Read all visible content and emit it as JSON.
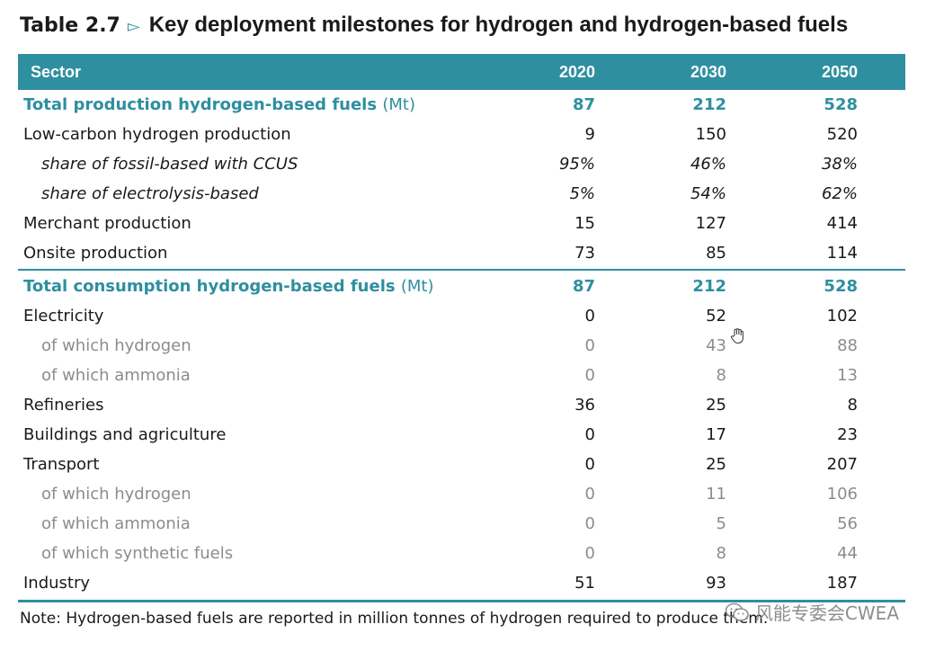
{
  "title": {
    "number": "Table 2.7",
    "arrow": "▻",
    "text": "Key deployment milestones for hydrogen and hydrogen-based fuels"
  },
  "header": {
    "sector": "Sector",
    "y2020": "2020",
    "y2030": "2030",
    "y2050": "2050"
  },
  "production": {
    "total": {
      "label": "Total production hydrogen-based fuels",
      "unit": "(Mt)",
      "v2020": "87",
      "v2030": "212",
      "v2050": "528"
    },
    "low_carbon": {
      "label": "Low-carbon hydrogen production",
      "v2020": "9",
      "v2030": "150",
      "v2050": "520"
    },
    "fossil_ccus": {
      "label": "share of fossil-based with CCUS",
      "v2020": "95%",
      "v2030": "46%",
      "v2050": "38%"
    },
    "electrolysis": {
      "label": "share of electrolysis-based",
      "v2020": "5%",
      "v2030": "54%",
      "v2050": "62%"
    },
    "merchant": {
      "label": "Merchant production",
      "v2020": "15",
      "v2030": "127",
      "v2050": "414"
    },
    "onsite": {
      "label": "Onsite production",
      "v2020": "73",
      "v2030": "85",
      "v2050": "114"
    }
  },
  "consumption": {
    "total": {
      "label": "Total consumption hydrogen-based fuels",
      "unit": "(Mt)",
      "v2020": "87",
      "v2030": "212",
      "v2050": "528"
    },
    "electricity": {
      "label": "Electricity",
      "v2020": "0",
      "v2030": "52",
      "v2050": "102"
    },
    "elec_hydrogen": {
      "label": "of which hydrogen",
      "v2020": "0",
      "v2030": "43",
      "v2050": "88"
    },
    "elec_ammonia": {
      "label": "of which ammonia",
      "v2020": "0",
      "v2030": "8",
      "v2050": "13"
    },
    "refineries": {
      "label": "Refineries",
      "v2020": "36",
      "v2030": "25",
      "v2050": "8"
    },
    "buildings": {
      "label": "Buildings and agriculture",
      "v2020": "0",
      "v2030": "17",
      "v2050": "23"
    },
    "transport": {
      "label": "Transport",
      "v2020": "0",
      "v2030": "25",
      "v2050": "207"
    },
    "trans_hydrogen": {
      "label": "of which hydrogen",
      "v2020": "0",
      "v2030": "11",
      "v2050": "106"
    },
    "trans_ammonia": {
      "label": "of which ammonia",
      "v2020": "0",
      "v2030": "5",
      "v2050": "56"
    },
    "trans_synthetic": {
      "label": "of which synthetic fuels",
      "v2020": "0",
      "v2030": "8",
      "v2050": "44"
    },
    "industry": {
      "label": "Industry",
      "v2020": "51",
      "v2030": "93",
      "v2050": "187"
    }
  },
  "note": "Note: Hydrogen-based fuels are reported in million tonnes of hydrogen required to produce them.",
  "watermark": "风能专委会CWEA",
  "colors": {
    "accent": "#2e8fa0",
    "muted": "#8c8c8c"
  }
}
